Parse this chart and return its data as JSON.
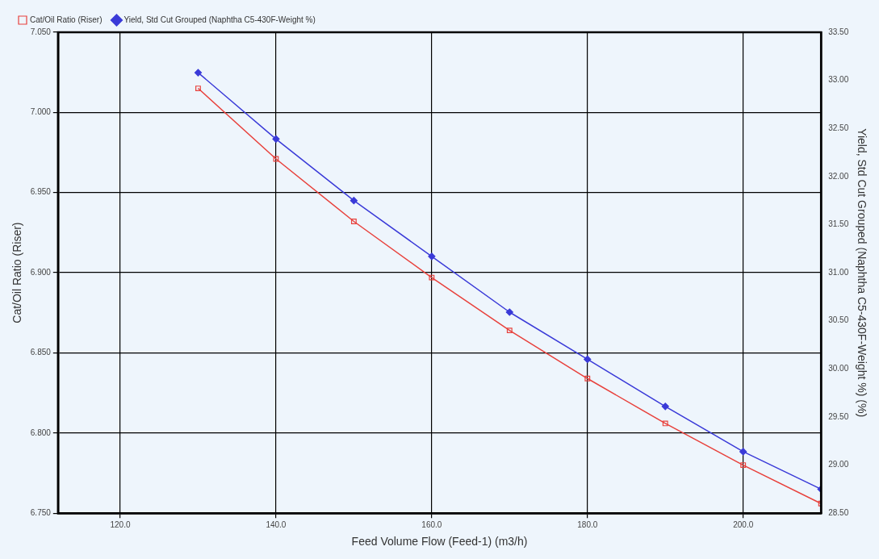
{
  "chart_data": {
    "type": "line",
    "xlabel": "Feed Volume Flow (Feed-1) (m3/h)",
    "ylabel": "Cat/Oil Ratio (Riser)",
    "y2label": "Yield, Std Cut Grouped (Naphtha C5-430F-Weight %) (%)",
    "x": [
      130,
      140,
      150,
      160,
      170,
      180,
      190,
      200,
      210
    ],
    "series": [
      {
        "name": "Cat/Oil Ratio (Riser)",
        "color": "#e8413c",
        "marker": "square",
        "values": [
          7.015,
          6.971,
          6.932,
          6.897,
          6.864,
          6.834,
          6.806,
          6.78,
          6.756
        ]
      },
      {
        "name": "Yield, Std Cut Grouped (Naphtha C5-430F-Weight %)",
        "color": "#3a3ad8",
        "marker": "diamond",
        "axis": "y2",
        "values": [
          33.08,
          32.39,
          31.75,
          31.17,
          30.59,
          30.1,
          29.61,
          29.14,
          28.75
        ]
      }
    ],
    "xlim": [
      112,
      210
    ],
    "xticks": [
      {
        "value": 120,
        "label": "120.0"
      },
      {
        "value": 140,
        "label": "140.0"
      },
      {
        "value": 160,
        "label": "160.0"
      },
      {
        "value": 180,
        "label": "180.0"
      },
      {
        "value": 200,
        "label": "200.0"
      }
    ],
    "ylim": [
      6.75,
      7.05
    ],
    "yticks": [
      {
        "value": 6.75,
        "label": "6.750"
      },
      {
        "value": 6.8,
        "label": "6.800"
      },
      {
        "value": 6.85,
        "label": "6.850"
      },
      {
        "value": 6.9,
        "label": "6.900"
      },
      {
        "value": 6.95,
        "label": "6.950"
      },
      {
        "value": 7.0,
        "label": "7.000"
      },
      {
        "value": 7.05,
        "label": "7.050"
      }
    ],
    "y2lim": [
      28.5,
      33.5
    ],
    "y2ticks": [
      {
        "value": 28.5,
        "label": "28.50"
      },
      {
        "value": 29,
        "label": "29.00"
      },
      {
        "value": 29.5,
        "label": "29.50"
      },
      {
        "value": 30,
        "label": "30.00"
      },
      {
        "value": 30.5,
        "label": "30.50"
      },
      {
        "value": 31,
        "label": "31.00"
      },
      {
        "value": 31.5,
        "label": "31.50"
      },
      {
        "value": 32,
        "label": "32.00"
      },
      {
        "value": 32.5,
        "label": "32.50"
      },
      {
        "value": 33,
        "label": "33.00"
      },
      {
        "value": 33.5,
        "label": "33.50"
      }
    ],
    "grid": true,
    "legend": "top left",
    "line_style": "solid"
  }
}
